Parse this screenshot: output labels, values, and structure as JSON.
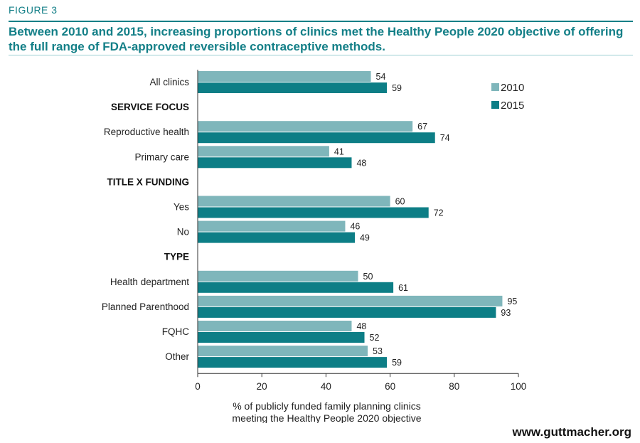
{
  "header": {
    "figure_label": "FIGURE 3",
    "title": "Between 2010 and 2015, increasing proportions of clinics met the Healthy People 2020 objective of offering the full range of FDA-approved reversible contraceptive methods."
  },
  "footer": {
    "site": "www.guttmacher.org"
  },
  "colors": {
    "accent": "#137f87",
    "series_2010": "#7fb6bb",
    "series_2015": "#0d7e86"
  },
  "chart_data": {
    "type": "bar",
    "orientation": "horizontal",
    "rows": [
      {
        "label": "All clinics",
        "kind": "category",
        "values": [
          54,
          59
        ]
      },
      {
        "label": "SERVICE FOCUS",
        "kind": "heading"
      },
      {
        "label": "Reproductive health",
        "kind": "category",
        "values": [
          67,
          74
        ]
      },
      {
        "label": "Primary care",
        "kind": "category",
        "values": [
          41,
          48
        ]
      },
      {
        "label": "TITLE X FUNDING",
        "kind": "heading"
      },
      {
        "label": "Yes",
        "kind": "category",
        "values": [
          60,
          72
        ]
      },
      {
        "label": "No",
        "kind": "category",
        "values": [
          46,
          49
        ]
      },
      {
        "label": "TYPE",
        "kind": "heading"
      },
      {
        "label": "Health department",
        "kind": "category",
        "values": [
          50,
          61
        ]
      },
      {
        "label": "Planned Parenthood",
        "kind": "category",
        "values": [
          95,
          93
        ]
      },
      {
        "label": "FQHC",
        "kind": "category",
        "values": [
          48,
          52
        ]
      },
      {
        "label": "Other",
        "kind": "category",
        "values": [
          53,
          59
        ]
      }
    ],
    "series": [
      {
        "name": "2010",
        "color": "#7fb6bb"
      },
      {
        "name": "2015",
        "color": "#0d7e86"
      }
    ],
    "xlim": [
      0,
      100
    ],
    "xticks": [
      0,
      20,
      40,
      60,
      80,
      100
    ],
    "xlabel": [
      "% of publicly funded family planning clinics",
      "meeting the Healthy People 2020 objective"
    ],
    "legend_position": "top-right",
    "grid": false
  }
}
